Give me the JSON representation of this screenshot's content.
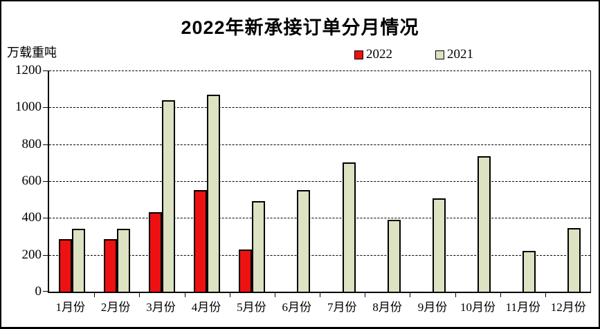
{
  "title": "2022年新承接订单分月情况",
  "unit_label": "万载重吨",
  "legend": {
    "items": [
      {
        "label": "2022",
        "color": "#ee1111"
      },
      {
        "label": "2021",
        "color": "#dce2c2"
      }
    ]
  },
  "chart_data": {
    "type": "bar",
    "title": "2022年新承接订单分月情况",
    "ylabel": "万载重吨",
    "xlabel": "",
    "categories": [
      "1月份",
      "2月份",
      "3月份",
      "4月份",
      "5月份",
      "6月份",
      "7月份",
      "8月份",
      "9月份",
      "10月份",
      "11月份",
      "12月份"
    ],
    "series": [
      {
        "name": "2022",
        "color": "#ee1111",
        "values": [
          285,
          285,
          430,
          550,
          230,
          0,
          0,
          0,
          0,
          0,
          0,
          0
        ]
      },
      {
        "name": "2021",
        "color": "#dce2c2",
        "values": [
          340,
          340,
          1040,
          1070,
          490,
          550,
          700,
          390,
          505,
          735,
          220,
          345
        ]
      }
    ],
    "ylim": [
      0,
      1200
    ],
    "ytick_step": 200,
    "grid": "horizontal-dashed",
    "legend_position": "top-center"
  }
}
